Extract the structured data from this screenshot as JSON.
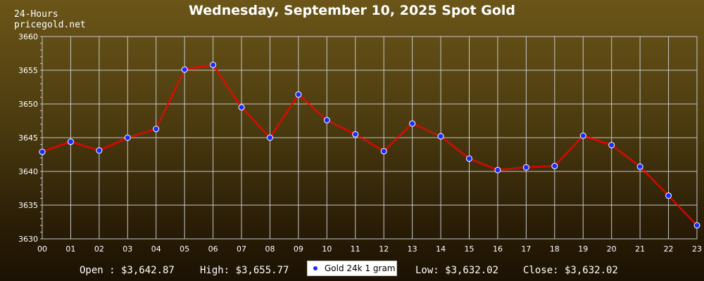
{
  "header": {
    "period": "24-Hours",
    "site": "pricegold.net"
  },
  "chart_data": {
    "type": "line",
    "title": "Wednesday, September 10, 2025 Spot Gold",
    "xlabel": "",
    "ylabel": "",
    "categories": [
      "00",
      "01",
      "02",
      "03",
      "04",
      "05",
      "06",
      "07",
      "08",
      "09",
      "10",
      "11",
      "12",
      "13",
      "14",
      "15",
      "16",
      "17",
      "18",
      "19",
      "20",
      "21",
      "22",
      "23"
    ],
    "series": [
      {
        "name": "Gold 24k 1 gram",
        "values": [
          3642.9,
          3644.4,
          3643.1,
          3645.0,
          3646.3,
          3655.1,
          3655.8,
          3649.5,
          3645.0,
          3651.4,
          3647.6,
          3645.5,
          3643.0,
          3647.1,
          3645.2,
          3641.9,
          3640.2,
          3640.6,
          3640.8,
          3645.3,
          3643.9,
          3640.7,
          3636.4,
          3632.0
        ]
      }
    ],
    "ylim": [
      3630,
      3660
    ],
    "yticks": [
      3630,
      3635,
      3640,
      3645,
      3650,
      3655,
      3660
    ],
    "grid": true,
    "legend_position": "bottom-center",
    "line_color": "#ff0000",
    "marker_color": "#1a2cff",
    "grid_color": "#c8c8c8",
    "text_color": "#ffffff"
  },
  "footer": {
    "open": "Open : $3,642.87",
    "high": "High: $3,655.77",
    "low": "Low: $3,632.02",
    "close": "Close: $3,632.02"
  }
}
